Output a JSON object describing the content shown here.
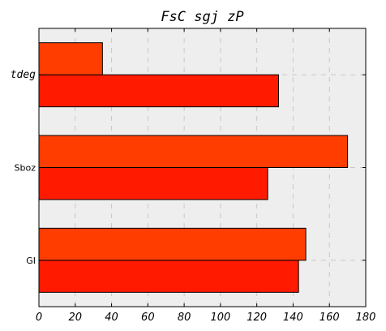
{
  "chart_data": {
    "type": "bar",
    "orientation": "horizontal",
    "title": "FsC sgj zP",
    "xlabel": "",
    "ylabel": "",
    "categories": [
      "GI",
      "Sboz",
      "tdeg"
    ],
    "series": [
      {
        "values": [
          143,
          126,
          132
        ],
        "color": "#ff1a00"
      },
      {
        "values": [
          147,
          170,
          35
        ],
        "color": "#ff3d00"
      }
    ],
    "xlim": [
      0,
      180
    ],
    "xticks": [
      "0",
      "20",
      "40",
      "60",
      "80",
      "100",
      "120",
      "140",
      "160",
      "180"
    ],
    "grid": true,
    "plot_background": "#eeeeee"
  }
}
